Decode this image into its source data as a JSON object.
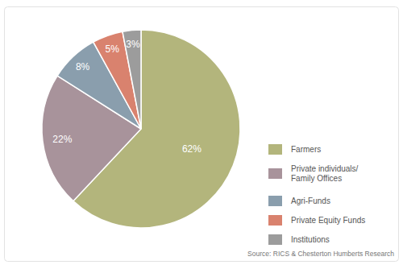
{
  "chart_data": {
    "type": "pie",
    "categories": [
      "Farmers",
      "Private individuals/Family Offices",
      "Agri-Funds",
      "Private Equity Funds",
      "Institutions"
    ],
    "values": [
      62,
      22,
      8,
      5,
      3
    ],
    "value_labels": [
      "62%",
      "22%",
      "8%",
      "5%",
      "3%"
    ],
    "colors": [
      "#b3b57c",
      "#a8939b",
      "#8a9ead",
      "#d9826e",
      "#9c9c9c"
    ],
    "data_labels": true,
    "legend": "right",
    "annotations": [
      "Source: RICS & Chesterton Humberts Research"
    ]
  }
}
